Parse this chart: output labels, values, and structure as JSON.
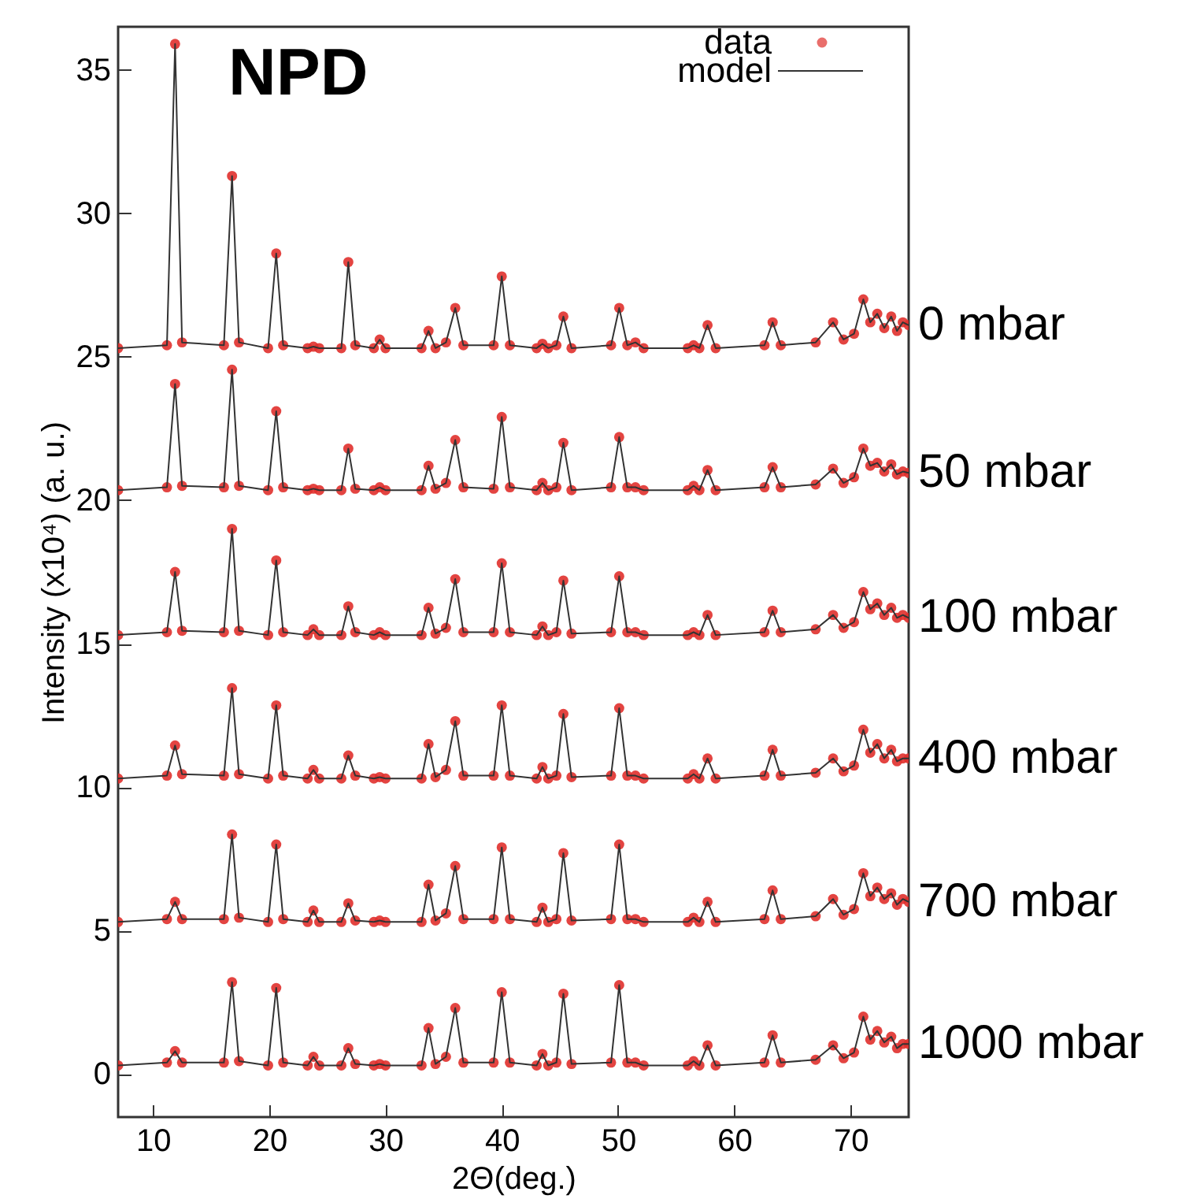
{
  "chart_data": {
    "type": "line",
    "title": "NPD",
    "xlabel": "2Θ(deg.)",
    "ylabel": "Intensity (x10⁴) (a. u.)",
    "xlim": [
      7,
      75
    ],
    "ylim": [
      -1.5,
      36.5
    ],
    "xticks": [
      10,
      20,
      30,
      40,
      50,
      60,
      70
    ],
    "yticks": [
      0,
      5,
      10,
      15,
      20,
      25,
      30,
      35
    ],
    "grid": false,
    "legend": "top right",
    "line_style": "solid",
    "x": [
      7,
      11.2,
      11.9,
      12.5,
      16.1,
      16.8,
      17.4,
      19.9,
      20.6,
      21.2,
      23.3,
      23.8,
      24.3,
      26.2,
      26.8,
      27.4,
      29.0,
      29.5,
      30.0,
      33.1,
      33.7,
      34.3,
      35.2,
      36.0,
      36.7,
      39.3,
      40.0,
      40.7,
      43.0,
      43.5,
      44.0,
      44.7,
      45.3,
      46.0,
      49.4,
      50.1,
      50.8,
      51.5,
      52.2,
      56.0,
      56.5,
      57.0,
      57.7,
      58.4,
      62.6,
      63.3,
      64.0,
      67.0,
      68.5,
      69.4,
      70.3,
      71.1,
      71.7,
      72.3,
      72.9,
      73.5,
      74.0,
      74.5,
      75
    ],
    "series": [
      {
        "name": "data",
        "type": "scatter",
        "marker": "circle",
        "color": "#e0302c",
        "values": [
          25.3,
          25.4,
          35.9,
          25.5,
          25.4,
          31.3,
          25.5,
          25.3,
          28.6,
          25.4,
          25.3,
          25.35,
          25.3,
          25.3,
          28.3,
          25.4,
          25.3,
          25.6,
          25.3,
          25.3,
          25.9,
          25.3,
          25.5,
          26.7,
          25.4,
          25.4,
          27.8,
          25.4,
          25.3,
          25.45,
          25.3,
          25.4,
          26.4,
          25.3,
          25.4,
          26.7,
          25.4,
          25.5,
          25.3,
          25.3,
          25.4,
          25.3,
          26.1,
          25.3,
          25.4,
          26.2,
          25.4,
          25.5,
          26.2,
          25.6,
          25.8,
          27.0,
          26.2,
          26.5,
          26.0,
          26.4,
          25.9,
          26.2,
          26.1
        ]
      },
      {
        "name": "model",
        "color": "#333333",
        "values": [
          25.3,
          25.4,
          35.9,
          25.5,
          25.4,
          31.3,
          25.5,
          25.3,
          28.6,
          25.4,
          25.3,
          25.35,
          25.3,
          25.3,
          28.3,
          25.4,
          25.3,
          25.6,
          25.3,
          25.3,
          25.9,
          25.3,
          25.5,
          26.7,
          25.4,
          25.4,
          27.8,
          25.4,
          25.3,
          25.45,
          25.3,
          25.4,
          26.4,
          25.3,
          25.4,
          26.7,
          25.4,
          25.5,
          25.3,
          25.3,
          25.4,
          25.3,
          26.1,
          25.3,
          25.4,
          26.2,
          25.4,
          25.5,
          26.2,
          25.6,
          25.8,
          27.0,
          26.2,
          26.5,
          26.0,
          26.4,
          25.9,
          26.2,
          26.1
        ]
      },
      {
        "type": "scatter",
        "marker": "circle",
        "color": "#e0302c",
        "values": [
          20.35,
          20.45,
          24.05,
          20.5,
          20.45,
          24.55,
          20.5,
          20.35,
          23.1,
          20.45,
          20.35,
          20.4,
          20.35,
          20.35,
          21.8,
          20.4,
          20.35,
          20.45,
          20.35,
          20.35,
          21.2,
          20.4,
          20.6,
          22.1,
          20.45,
          20.4,
          22.9,
          20.45,
          20.35,
          20.6,
          20.35,
          20.45,
          22.0,
          20.35,
          20.45,
          22.2,
          20.45,
          20.45,
          20.35,
          20.35,
          20.5,
          20.35,
          21.05,
          20.35,
          20.45,
          21.15,
          20.45,
          20.55,
          21.1,
          20.6,
          20.8,
          21.8,
          21.2,
          21.3,
          21.0,
          21.25,
          20.9,
          21.0,
          20.95
        ]
      },
      {
        "color": "#333333",
        "values": [
          20.35,
          20.45,
          24.05,
          20.5,
          20.45,
          24.55,
          20.5,
          20.35,
          23.1,
          20.45,
          20.35,
          20.4,
          20.35,
          20.35,
          21.8,
          20.4,
          20.35,
          20.45,
          20.35,
          20.35,
          21.2,
          20.4,
          20.6,
          22.1,
          20.45,
          20.4,
          22.9,
          20.45,
          20.35,
          20.6,
          20.35,
          20.45,
          22.0,
          20.35,
          20.45,
          22.2,
          20.45,
          20.45,
          20.35,
          20.35,
          20.5,
          20.35,
          21.05,
          20.35,
          20.45,
          21.15,
          20.45,
          20.55,
          21.1,
          20.6,
          20.8,
          21.8,
          21.2,
          21.3,
          21.0,
          21.25,
          20.9,
          21.0,
          20.95
        ]
      },
      {
        "type": "scatter",
        "marker": "circle",
        "color": "#e0302c",
        "values": [
          15.3,
          15.4,
          17.5,
          15.45,
          15.4,
          19.0,
          15.45,
          15.3,
          17.9,
          15.4,
          15.3,
          15.5,
          15.3,
          15.3,
          16.3,
          15.4,
          15.3,
          15.4,
          15.3,
          15.3,
          16.25,
          15.35,
          15.55,
          17.25,
          15.4,
          15.4,
          17.8,
          15.4,
          15.3,
          15.6,
          15.3,
          15.4,
          17.2,
          15.35,
          15.4,
          17.35,
          15.4,
          15.4,
          15.3,
          15.3,
          15.4,
          15.3,
          16.0,
          15.3,
          15.4,
          16.15,
          15.4,
          15.5,
          16.0,
          15.55,
          15.75,
          16.8,
          16.2,
          16.4,
          16.0,
          16.25,
          15.9,
          16.0,
          15.9
        ]
      },
      {
        "color": "#333333",
        "values": [
          15.3,
          15.4,
          17.5,
          15.45,
          15.4,
          19.0,
          15.45,
          15.3,
          17.9,
          15.4,
          15.3,
          15.5,
          15.3,
          15.3,
          16.3,
          15.4,
          15.3,
          15.4,
          15.3,
          15.3,
          16.25,
          15.35,
          15.55,
          17.25,
          15.4,
          15.4,
          17.8,
          15.4,
          15.3,
          15.6,
          15.3,
          15.4,
          17.2,
          15.35,
          15.4,
          17.35,
          15.4,
          15.4,
          15.3,
          15.3,
          15.4,
          15.3,
          16.0,
          15.3,
          15.4,
          16.15,
          15.4,
          15.5,
          16.0,
          15.55,
          15.75,
          16.8,
          16.2,
          16.4,
          16.0,
          16.25,
          15.9,
          16.0,
          15.9
        ]
      },
      {
        "type": "scatter",
        "marker": "circle",
        "color": "#e0302c",
        "values": [
          10.3,
          10.4,
          11.45,
          10.45,
          10.4,
          13.45,
          10.45,
          10.3,
          12.85,
          10.4,
          10.3,
          10.6,
          10.3,
          10.3,
          11.1,
          10.4,
          10.3,
          10.35,
          10.3,
          10.3,
          11.5,
          10.35,
          10.6,
          12.3,
          10.4,
          10.4,
          12.85,
          10.4,
          10.3,
          10.7,
          10.3,
          10.4,
          12.55,
          10.35,
          10.4,
          12.75,
          10.4,
          10.4,
          10.3,
          10.3,
          10.45,
          10.3,
          11.0,
          10.3,
          10.4,
          11.3,
          10.4,
          10.5,
          11.0,
          10.55,
          10.75,
          12.0,
          11.2,
          11.5,
          11.0,
          11.3,
          10.9,
          11.0,
          11.0
        ]
      },
      {
        "color": "#333333",
        "values": [
          10.3,
          10.4,
          11.45,
          10.45,
          10.4,
          13.45,
          10.45,
          10.3,
          12.85,
          10.4,
          10.3,
          10.6,
          10.3,
          10.3,
          11.1,
          10.4,
          10.3,
          10.35,
          10.3,
          10.3,
          11.5,
          10.35,
          10.6,
          12.3,
          10.4,
          10.4,
          12.85,
          10.4,
          10.3,
          10.7,
          10.3,
          10.4,
          12.55,
          10.35,
          10.4,
          12.75,
          10.4,
          10.4,
          10.3,
          10.3,
          10.45,
          10.3,
          11.0,
          10.3,
          10.4,
          11.3,
          10.4,
          10.5,
          11.0,
          10.55,
          10.75,
          12.0,
          11.2,
          11.5,
          11.0,
          11.3,
          10.9,
          11.0,
          11.0
        ]
      },
      {
        "type": "scatter",
        "marker": "circle",
        "color": "#e0302c",
        "values": [
          5.3,
          5.4,
          6.0,
          5.4,
          5.4,
          8.35,
          5.45,
          5.3,
          8.0,
          5.4,
          5.3,
          5.7,
          5.3,
          5.3,
          5.95,
          5.35,
          5.3,
          5.35,
          5.3,
          5.3,
          6.6,
          5.35,
          5.6,
          7.25,
          5.4,
          5.4,
          7.9,
          5.4,
          5.3,
          5.8,
          5.3,
          5.4,
          7.7,
          5.35,
          5.4,
          8.0,
          5.4,
          5.4,
          5.3,
          5.3,
          5.45,
          5.3,
          6.0,
          5.3,
          5.4,
          6.4,
          5.4,
          5.5,
          6.1,
          5.55,
          5.75,
          7.0,
          6.2,
          6.5,
          6.1,
          6.3,
          5.9,
          6.1,
          6.0
        ]
      },
      {
        "color": "#333333",
        "values": [
          5.3,
          5.4,
          6.0,
          5.4,
          5.4,
          8.35,
          5.45,
          5.3,
          8.0,
          5.4,
          5.3,
          5.7,
          5.3,
          5.3,
          5.95,
          5.35,
          5.3,
          5.35,
          5.3,
          5.3,
          6.6,
          5.35,
          5.6,
          7.25,
          5.4,
          5.4,
          7.9,
          5.4,
          5.3,
          5.8,
          5.3,
          5.4,
          7.7,
          5.35,
          5.4,
          8.0,
          5.4,
          5.4,
          5.3,
          5.3,
          5.45,
          5.3,
          6.0,
          5.3,
          5.4,
          6.4,
          5.4,
          5.5,
          6.1,
          5.55,
          5.75,
          7.0,
          6.2,
          6.5,
          6.1,
          6.3,
          5.9,
          6.1,
          6.0
        ]
      },
      {
        "type": "scatter",
        "marker": "circle",
        "color": "#e0302c",
        "values": [
          0.3,
          0.4,
          0.8,
          0.4,
          0.4,
          3.2,
          0.45,
          0.3,
          3.0,
          0.4,
          0.3,
          0.6,
          0.3,
          0.3,
          0.9,
          0.35,
          0.3,
          0.35,
          0.3,
          0.3,
          1.6,
          0.35,
          0.6,
          2.3,
          0.4,
          0.4,
          2.85,
          0.4,
          0.3,
          0.7,
          0.3,
          0.4,
          2.8,
          0.35,
          0.4,
          3.1,
          0.4,
          0.4,
          0.3,
          0.3,
          0.45,
          0.3,
          1.0,
          0.3,
          0.4,
          1.35,
          0.4,
          0.5,
          1.0,
          0.55,
          0.75,
          2.0,
          1.2,
          1.5,
          1.1,
          1.3,
          0.9,
          1.05,
          1.05
        ]
      },
      {
        "color": "#333333",
        "values": [
          0.3,
          0.4,
          0.8,
          0.4,
          0.4,
          3.2,
          0.45,
          0.3,
          3.0,
          0.4,
          0.3,
          0.6,
          0.3,
          0.3,
          0.9,
          0.35,
          0.3,
          0.35,
          0.3,
          0.3,
          1.6,
          0.35,
          0.6,
          2.3,
          0.4,
          0.4,
          2.85,
          0.4,
          0.3,
          0.7,
          0.3,
          0.4,
          2.8,
          0.35,
          0.4,
          3.1,
          0.4,
          0.4,
          0.3,
          0.3,
          0.45,
          0.3,
          1.0,
          0.3,
          0.4,
          1.35,
          0.4,
          0.5,
          1.0,
          0.55,
          0.75,
          2.0,
          1.2,
          1.5,
          1.1,
          1.3,
          0.9,
          1.05,
          1.05
        ]
      }
    ],
    "annotations": [
      "0 mbar",
      "50 mbar",
      "100 mbar",
      "400 mbar",
      "700 mbar",
      "1000 mbar"
    ]
  }
}
